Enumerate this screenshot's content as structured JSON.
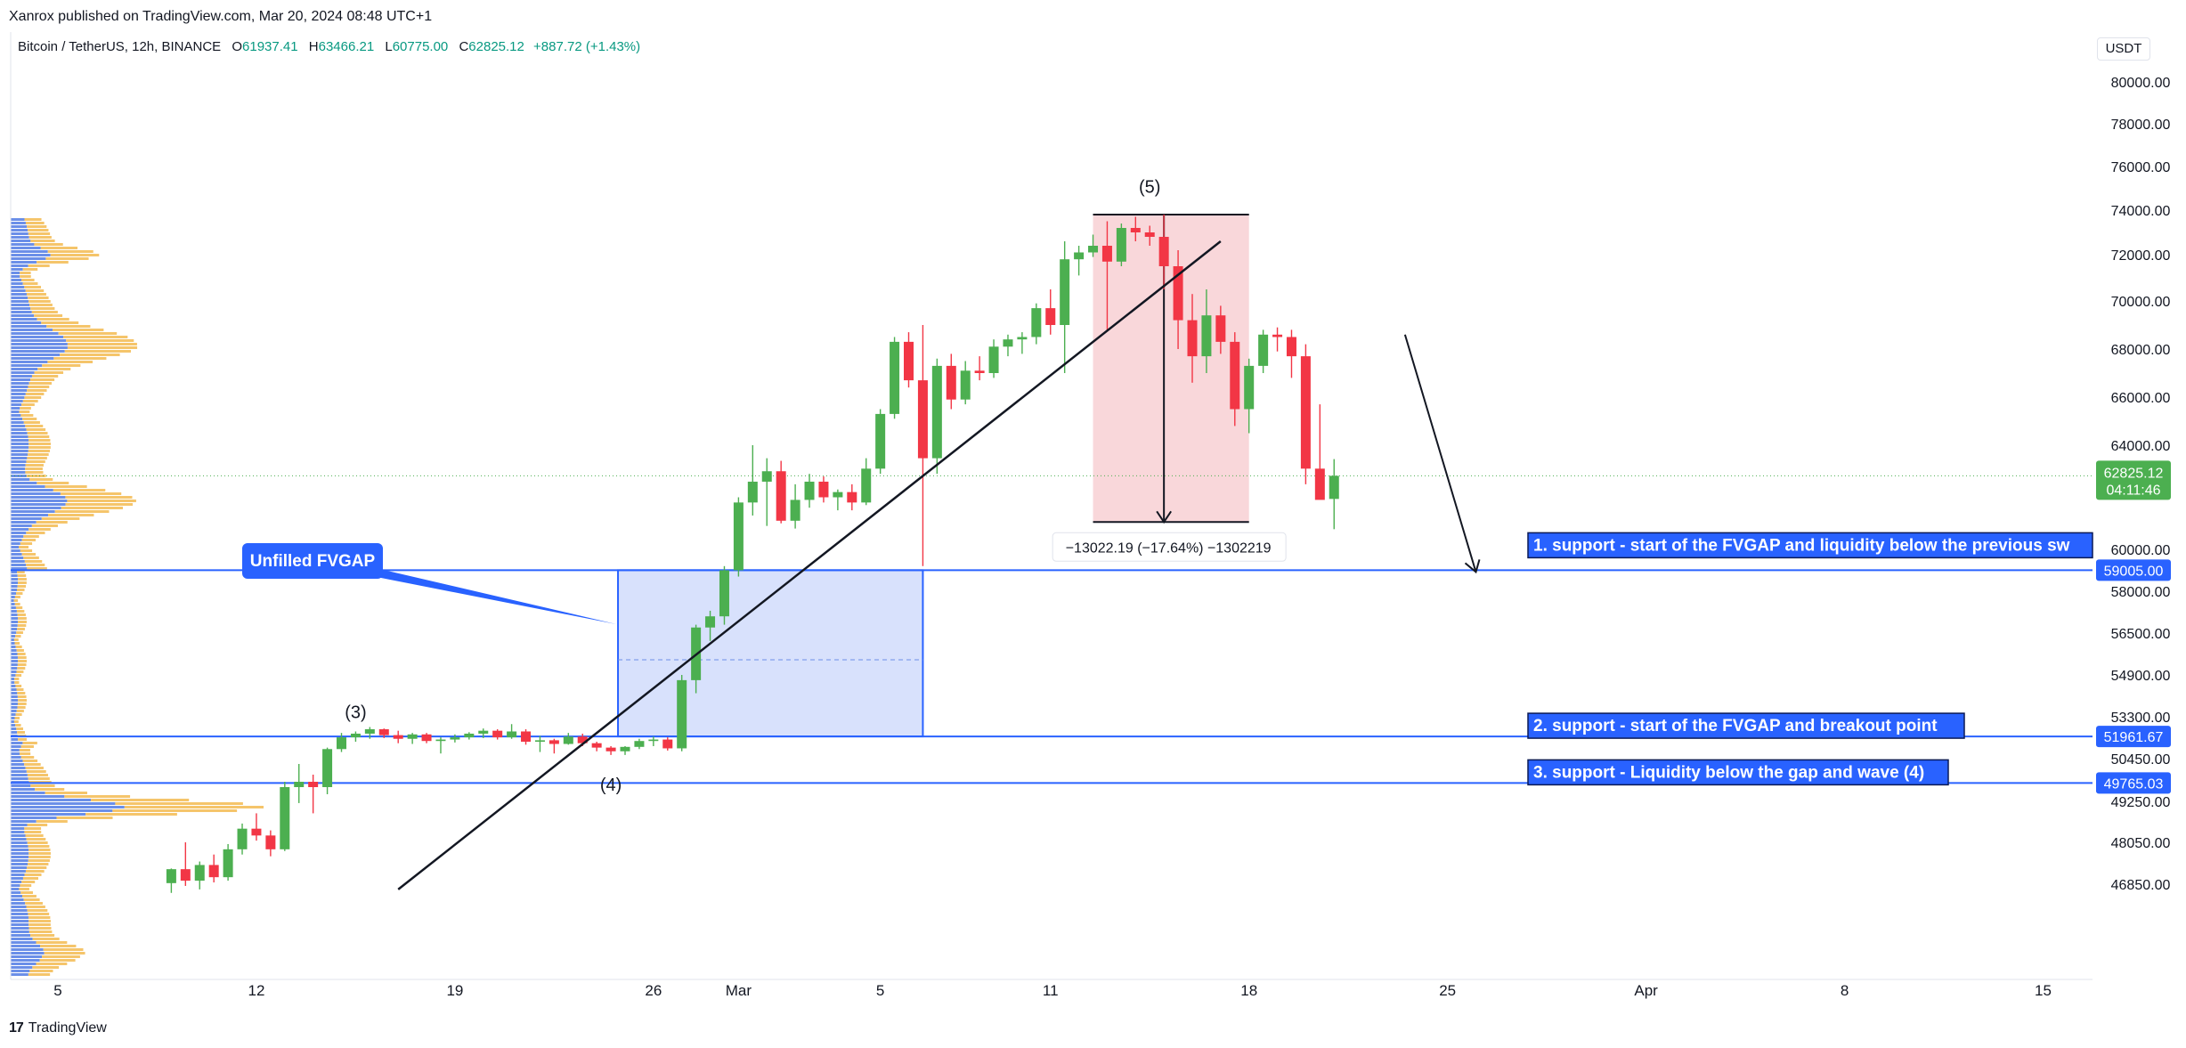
{
  "header": {
    "published": "Xanrox published on TradingView.com, Mar 20, 2024 08:48 UTC+1"
  },
  "legend": {
    "symbol": "Bitcoin / TetherUS, 12h, BINANCE",
    "open_label": "O",
    "open": "61937.41",
    "high_label": "H",
    "high": "63466.21",
    "low_label": "L",
    "low": "60775.00",
    "close_label": "C",
    "close": "62825.12",
    "change": "+887.72 (+1.43%)"
  },
  "currency": "USDT",
  "footer": {
    "brand": "TradingView",
    "logo": "17"
  },
  "colors": {
    "up": "#4caf50",
    "down": "#f23645",
    "accent": "#2962ff",
    "fvg_fill": "#d1dcfb",
    "fvg_border": "#2962ff",
    "range_fill": "#f8d0d4"
  },
  "chart_data": {
    "type": "candlestick",
    "interval": "12h",
    "y_axis": {
      "ticks": [
        "80000.00",
        "78000.00",
        "76000.00",
        "74000.00",
        "72000.00",
        "70000.00",
        "68000.00",
        "66000.00",
        "64000.00",
        "60000.00",
        "58000.00",
        "56500.00",
        "54900.00",
        "53300.00",
        "50450.00",
        "49250.00",
        "48050.00",
        "46850.00"
      ],
      "tick_values": [
        80000,
        78000,
        76000,
        74000,
        72000,
        70000,
        68000,
        66000,
        64000,
        60000,
        58000,
        56500,
        54900,
        53300,
        50450,
        49250,
        48050,
        46850
      ]
    },
    "x_axis": {
      "ticks": [
        "5",
        "12",
        "19",
        "26",
        "Mar",
        "5",
        "11",
        "18",
        "25",
        "Apr",
        "8",
        "15"
      ],
      "tick_days": [
        5,
        12,
        19,
        26,
        29,
        34,
        40,
        47,
        54,
        61,
        68,
        75
      ]
    },
    "candles": [
      {
        "d": 9.0,
        "o": 46880,
        "h": 47300,
        "l": 46600,
        "c": 47280
      },
      {
        "d": 9.5,
        "o": 47280,
        "h": 48050,
        "l": 46800,
        "c": 46950
      },
      {
        "d": 10.0,
        "o": 46950,
        "h": 47500,
        "l": 46700,
        "c": 47400
      },
      {
        "d": 10.5,
        "o": 47400,
        "h": 47700,
        "l": 46900,
        "c": 47050
      },
      {
        "d": 11.0,
        "o": 47050,
        "h": 48000,
        "l": 46950,
        "c": 47850
      },
      {
        "d": 11.5,
        "o": 47850,
        "h": 48600,
        "l": 47700,
        "c": 48450
      },
      {
        "d": 12.0,
        "o": 48450,
        "h": 48900,
        "l": 48100,
        "c": 48250
      },
      {
        "d": 12.5,
        "o": 48250,
        "h": 48400,
        "l": 47650,
        "c": 47850
      },
      {
        "d": 13.0,
        "o": 47850,
        "h": 49800,
        "l": 47800,
        "c": 49650
      },
      {
        "d": 13.5,
        "o": 49650,
        "h": 50300,
        "l": 49200,
        "c": 49800
      },
      {
        "d": 14.0,
        "o": 49800,
        "h": 50000,
        "l": 48900,
        "c": 49650
      },
      {
        "d": 14.5,
        "o": 49650,
        "h": 51200,
        "l": 49450,
        "c": 51100
      },
      {
        "d": 15.0,
        "o": 51100,
        "h": 52200,
        "l": 50900,
        "c": 51900
      },
      {
        "d": 15.5,
        "o": 51900,
        "h": 52300,
        "l": 51600,
        "c": 52150
      },
      {
        "d": 16.0,
        "o": 52150,
        "h": 52600,
        "l": 51800,
        "c": 52450
      },
      {
        "d": 16.5,
        "o": 52450,
        "h": 52500,
        "l": 51850,
        "c": 52050
      },
      {
        "d": 17.0,
        "o": 52050,
        "h": 52350,
        "l": 51500,
        "c": 51800
      },
      {
        "d": 17.5,
        "o": 51800,
        "h": 52200,
        "l": 51450,
        "c": 52100
      },
      {
        "d": 18.0,
        "o": 52100,
        "h": 52200,
        "l": 51500,
        "c": 51650
      },
      {
        "d": 18.5,
        "o": 51650,
        "h": 51900,
        "l": 50800,
        "c": 51750
      },
      {
        "d": 19.0,
        "o": 51750,
        "h": 52100,
        "l": 51550,
        "c": 51900
      },
      {
        "d": 19.5,
        "o": 51900,
        "h": 52250,
        "l": 51750,
        "c": 52150
      },
      {
        "d": 20.0,
        "o": 52150,
        "h": 52500,
        "l": 51850,
        "c": 52350
      },
      {
        "d": 20.5,
        "o": 52350,
        "h": 52450,
        "l": 51750,
        "c": 51900
      },
      {
        "d": 21.0,
        "o": 51900,
        "h": 52800,
        "l": 51800,
        "c": 52300
      },
      {
        "d": 21.5,
        "o": 52300,
        "h": 52450,
        "l": 51400,
        "c": 51600
      },
      {
        "d": 22.0,
        "o": 51600,
        "h": 52000,
        "l": 50900,
        "c": 51700
      },
      {
        "d": 22.5,
        "o": 51700,
        "h": 51800,
        "l": 50800,
        "c": 51450
      },
      {
        "d": 23.0,
        "o": 51450,
        "h": 52200,
        "l": 51400,
        "c": 51950
      },
      {
        "d": 23.5,
        "o": 51950,
        "h": 52150,
        "l": 51300,
        "c": 51500
      },
      {
        "d": 24.0,
        "o": 51500,
        "h": 51600,
        "l": 50950,
        "c": 51200
      },
      {
        "d": 24.5,
        "o": 51200,
        "h": 51300,
        "l": 50700,
        "c": 50950
      },
      {
        "d": 25.0,
        "o": 50950,
        "h": 51300,
        "l": 50700,
        "c": 51250
      },
      {
        "d": 25.5,
        "o": 51250,
        "h": 51800,
        "l": 51100,
        "c": 51650
      },
      {
        "d": 26.0,
        "o": 51650,
        "h": 51950,
        "l": 51300,
        "c": 51750
      },
      {
        "d": 26.5,
        "o": 51750,
        "h": 51900,
        "l": 51000,
        "c": 51150
      },
      {
        "d": 27.0,
        "o": 51150,
        "h": 54900,
        "l": 50950,
        "c": 54700
      },
      {
        "d": 27.5,
        "o": 54700,
        "h": 56800,
        "l": 54200,
        "c": 56700
      },
      {
        "d": 28.0,
        "o": 56700,
        "h": 57300,
        "l": 56200,
        "c": 57100
      },
      {
        "d": 28.5,
        "o": 57100,
        "h": 59200,
        "l": 56800,
        "c": 59000
      },
      {
        "d": 29.0,
        "o": 59000,
        "h": 62000,
        "l": 58700,
        "c": 61800
      },
      {
        "d": 29.5,
        "o": 61800,
        "h": 64000,
        "l": 61300,
        "c": 62600
      },
      {
        "d": 30.0,
        "o": 62600,
        "h": 63500,
        "l": 60900,
        "c": 63000
      },
      {
        "d": 30.5,
        "o": 63000,
        "h": 63400,
        "l": 61000,
        "c": 61100
      },
      {
        "d": 31.0,
        "o": 61100,
        "h": 62500,
        "l": 60800,
        "c": 61900
      },
      {
        "d": 31.5,
        "o": 61900,
        "h": 62900,
        "l": 61600,
        "c": 62600
      },
      {
        "d": 32.0,
        "o": 62600,
        "h": 62800,
        "l": 61800,
        "c": 62000
      },
      {
        "d": 32.5,
        "o": 62000,
        "h": 62300,
        "l": 61500,
        "c": 62200
      },
      {
        "d": 33.0,
        "o": 62200,
        "h": 62500,
        "l": 61500,
        "c": 61800
      },
      {
        "d": 33.5,
        "o": 61800,
        "h": 63500,
        "l": 61700,
        "c": 63100
      },
      {
        "d": 34.0,
        "o": 63100,
        "h": 65500,
        "l": 62900,
        "c": 65300
      },
      {
        "d": 34.5,
        "o": 65300,
        "h": 68500,
        "l": 65100,
        "c": 68300
      },
      {
        "d": 35.0,
        "o": 68300,
        "h": 68700,
        "l": 66400,
        "c": 66700
      },
      {
        "d": 35.5,
        "o": 66700,
        "h": 69000,
        "l": 59200,
        "c": 63500
      },
      {
        "d": 36.0,
        "o": 63500,
        "h": 67600,
        "l": 62900,
        "c": 67300
      },
      {
        "d": 36.5,
        "o": 67300,
        "h": 67800,
        "l": 65500,
        "c": 65900
      },
      {
        "d": 37.0,
        "o": 65900,
        "h": 67500,
        "l": 65700,
        "c": 67100
      },
      {
        "d": 37.5,
        "o": 67100,
        "h": 67700,
        "l": 66700,
        "c": 67000
      },
      {
        "d": 38.0,
        "o": 67000,
        "h": 68400,
        "l": 66800,
        "c": 68100
      },
      {
        "d": 38.5,
        "o": 68100,
        "h": 68600,
        "l": 67700,
        "c": 68400
      },
      {
        "d": 39.0,
        "o": 68400,
        "h": 68700,
        "l": 67800,
        "c": 68500
      },
      {
        "d": 39.5,
        "o": 68500,
        "h": 69900,
        "l": 68200,
        "c": 69700
      },
      {
        "d": 40.0,
        "o": 69700,
        "h": 70500,
        "l": 68600,
        "c": 69000
      },
      {
        "d": 40.5,
        "o": 69000,
        "h": 72600,
        "l": 67000,
        "c": 71800
      },
      {
        "d": 41.0,
        "o": 71800,
        "h": 72400,
        "l": 71100,
        "c": 72100
      },
      {
        "d": 41.5,
        "o": 72100,
        "h": 72900,
        "l": 71900,
        "c": 72400
      },
      {
        "d": 42.0,
        "o": 72400,
        "h": 73500,
        "l": 68800,
        "c": 71700
      },
      {
        "d": 42.5,
        "o": 71700,
        "h": 73400,
        "l": 71500,
        "c": 73200
      },
      {
        "d": 43.0,
        "o": 73200,
        "h": 73700,
        "l": 72600,
        "c": 73000
      },
      {
        "d": 43.5,
        "o": 73000,
        "h": 73300,
        "l": 72400,
        "c": 72800
      },
      {
        "d": 44.0,
        "o": 72800,
        "h": 73800,
        "l": 70500,
        "c": 71500
      },
      {
        "d": 44.5,
        "o": 71500,
        "h": 72200,
        "l": 68000,
        "c": 69200
      },
      {
        "d": 45.0,
        "o": 69200,
        "h": 70300,
        "l": 66600,
        "c": 67700
      },
      {
        "d": 45.5,
        "o": 67700,
        "h": 70500,
        "l": 67000,
        "c": 69400
      },
      {
        "d": 46.0,
        "o": 69400,
        "h": 69800,
        "l": 67800,
        "c": 68300
      },
      {
        "d": 46.5,
        "o": 68300,
        "h": 68700,
        "l": 64800,
        "c": 65500
      },
      {
        "d": 47.0,
        "o": 65500,
        "h": 67600,
        "l": 64500,
        "c": 67300
      },
      {
        "d": 47.5,
        "o": 67300,
        "h": 68800,
        "l": 67000,
        "c": 68600
      },
      {
        "d": 48.0,
        "o": 68600,
        "h": 68900,
        "l": 67900,
        "c": 68500
      },
      {
        "d": 48.5,
        "o": 68500,
        "h": 68800,
        "l": 66800,
        "c": 67700
      },
      {
        "d": 49.0,
        "o": 67700,
        "h": 68200,
        "l": 62500,
        "c": 63100
      },
      {
        "d": 49.5,
        "o": 63100,
        "h": 65700,
        "l": 62000,
        "c": 61900
      },
      {
        "d": 50.0,
        "o": 61937,
        "h": 63466,
        "l": 60775,
        "c": 62825
      }
    ],
    "current_price": {
      "label": "62825.12",
      "countdown": "04:11:46",
      "value": 62825.12
    },
    "levels": [
      {
        "value": 59005,
        "label": "59005.00",
        "text": "1. support - start of the FVGAP and liquidity below the previous sw"
      },
      {
        "value": 51961.67,
        "label": "51961.67",
        "text": "2. support - start of the FVGAP and breakout point"
      },
      {
        "value": 49765.03,
        "label": "49765.03",
        "text": "3. support - Liquidity below the gap and wave (4)"
      }
    ],
    "fvg_box": {
      "d1": 24.75,
      "d2": 35.5,
      "top": 59005,
      "bottom": 51961.67,
      "mid": 55480
    },
    "callout": {
      "text": "Unfilled FVGAP"
    },
    "range_box": {
      "d1": 41.5,
      "d2": 47.0,
      "top": 73800,
      "bottom": 61050,
      "measure_day": 44.0
    },
    "measure_label": "−13022.19 (−17.64%) −1302219",
    "waves": [
      {
        "label": "(3)",
        "d": 15.5,
        "value": 53200
      },
      {
        "label": "(4)",
        "d": 24.5,
        "value": 49550
      },
      {
        "label": "(5)",
        "d": 43.5,
        "value": 74800
      }
    ],
    "trendline": {
      "d1": 17.0,
      "v1": 46700,
      "d2": 46.0,
      "v2": 72600
    },
    "projection": {
      "d1": 52.5,
      "v1": 68600,
      "d2": 55.0,
      "v2": 59005
    }
  }
}
